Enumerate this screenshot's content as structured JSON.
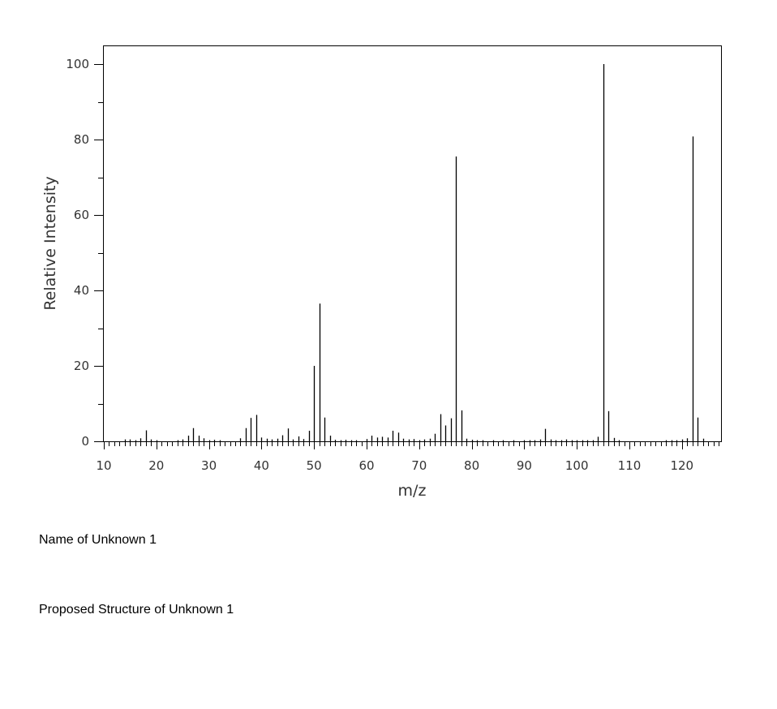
{
  "chart_data": {
    "type": "bar",
    "title": "",
    "xlabel": "m/z",
    "ylabel": "Relative Intensity",
    "xlim": [
      10,
      127
    ],
    "ylim": [
      0,
      105
    ],
    "x_ticks": [
      10,
      20,
      30,
      40,
      50,
      60,
      70,
      80,
      90,
      100,
      110,
      120
    ],
    "y_ticks": [
      0,
      20,
      40,
      60,
      80,
      100
    ],
    "grid": false,
    "x": [
      14,
      15,
      16,
      17,
      18,
      19,
      20,
      24,
      25,
      26,
      27,
      28,
      29,
      30,
      31,
      32,
      36,
      37,
      38,
      39,
      40,
      41,
      42,
      43,
      44,
      45,
      46,
      47,
      48,
      49,
      50,
      51,
      52,
      53,
      54,
      55,
      56,
      57,
      58,
      60,
      61,
      62,
      63,
      64,
      65,
      66,
      67,
      68,
      69,
      70,
      71,
      72,
      73,
      74,
      75,
      76,
      77,
      78,
      79,
      80,
      81,
      82,
      84,
      86,
      88,
      90,
      91,
      92,
      93,
      94,
      95,
      96,
      97,
      98,
      99,
      100,
      101,
      102,
      103,
      104,
      105,
      106,
      107,
      108,
      117,
      118,
      119,
      120,
      121,
      122,
      123,
      124
    ],
    "values": [
      0.5,
      0.5,
      0.3,
      0.8,
      2.9,
      0.5,
      0.3,
      0.3,
      0.5,
      1.5,
      3.5,
      1.5,
      0.8,
      0.3,
      0.4,
      0.3,
      0.8,
      3.5,
      6.2,
      7.0,
      1.0,
      0.7,
      0.5,
      0.7,
      1.6,
      3.4,
      0.5,
      1.3,
      0.6,
      2.8,
      20.0,
      36.5,
      6.3,
      1.5,
      0.4,
      0.3,
      0.4,
      0.3,
      0.3,
      0.6,
      1.5,
      1.0,
      1.2,
      1.0,
      2.8,
      2.3,
      0.7,
      0.5,
      0.6,
      0.3,
      0.5,
      0.7,
      2.0,
      7.2,
      4.2,
      6.1,
      75.5,
      8.2,
      0.7,
      0.4,
      0.3,
      0.3,
      0.3,
      0.3,
      0.3,
      0.3,
      0.3,
      0.3,
      0.5,
      3.3,
      0.5,
      0.3,
      0.3,
      0.5,
      0.3,
      0.3,
      0.3,
      0.3,
      0.3,
      1.2,
      100.0,
      8.0,
      0.9,
      0.3,
      0.3,
      0.3,
      0.3,
      0.5,
      0.8,
      80.8,
      6.3,
      0.7
    ]
  },
  "captions": {
    "name": "Name of Unknown 1",
    "structure": "Proposed Structure of Unknown 1"
  }
}
